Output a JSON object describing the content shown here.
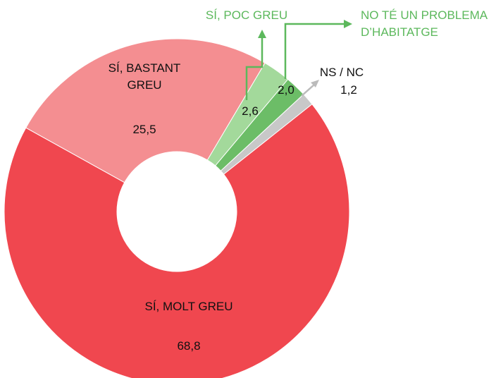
{
  "chart_data": {
    "type": "donut",
    "categories": [
      "SÍ, BASTANT GREU",
      "SÍ, POC GREU",
      "NO TÉ UN PROBLEMA D’HABITATGE",
      "NS / NC",
      "SÍ, MOLT GREU"
    ],
    "values": [
      25.5,
      2.6,
      2.0,
      1.2,
      68.8
    ],
    "value_labels": [
      "25,5",
      "2,6",
      "2,0",
      "1,2",
      "68,8"
    ],
    "colors": [
      "#f48e91",
      "#a3d99b",
      "#6cbd67",
      "#c8c8c8",
      "#f0474f"
    ]
  }
}
